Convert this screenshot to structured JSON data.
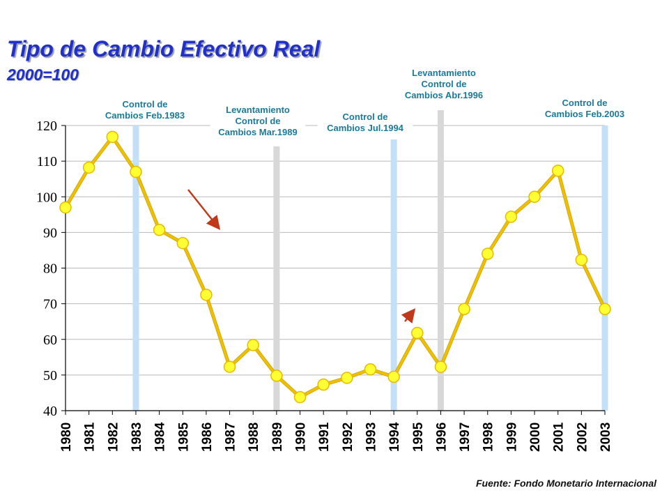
{
  "header": {
    "title": "Tipo de Cambio Efectivo Real",
    "subtitle": "2000=100"
  },
  "footer": {
    "source": "Fuente: Fondo Monetario Internacional"
  },
  "colors": {
    "title": "#2030c8",
    "line": "#f0c000",
    "marker_fill": "#ffff33",
    "marker_edge": "#e8b800",
    "control_band": "#c4e0f8",
    "lift_band": "#d8d8d8",
    "arrow": "#c0391b",
    "annotation_text": "#1a7a9a",
    "grid": "#b8b8b8"
  },
  "chart_data": {
    "type": "line",
    "x": [
      1980,
      1981,
      1982,
      1983,
      1984,
      1985,
      1986,
      1987,
      1988,
      1989,
      1990,
      1991,
      1992,
      1993,
      1994,
      1995,
      1996,
      1997,
      1998,
      1999,
      2000,
      2001,
      2002,
      2003
    ],
    "series": [
      {
        "values": [
          97,
          108.2,
          116.8,
          107,
          90.7,
          87,
          72.5,
          52.3,
          58.4,
          49.8,
          43.8,
          47.3,
          49.2,
          51.6,
          49.5,
          61.8,
          52.3,
          68.5,
          84,
          94.4,
          100,
          107.3,
          82.3,
          68.5
        ]
      }
    ],
    "ylim": [
      40,
      120
    ],
    "yticks": [
      40,
      50,
      60,
      70,
      80,
      90,
      100,
      110,
      120
    ],
    "grid": true,
    "legend": "none",
    "annotations": [
      {
        "kind": "control",
        "x": 1983,
        "lines": [
          "Control de",
          "Cambios Feb.1983"
        ]
      },
      {
        "kind": "lift",
        "x": 1989,
        "lines": [
          "Levantamiento",
          "Control de",
          "Cambios Mar.1989"
        ]
      },
      {
        "kind": "control",
        "x": 1994,
        "lines": [
          "Control de",
          "Cambios Jul.1994"
        ]
      },
      {
        "kind": "lift",
        "x": 1996,
        "lines": [
          "Levantamiento",
          "Control de",
          "Cambios Abr.1996"
        ]
      },
      {
        "kind": "control",
        "x": 2003,
        "lines": [
          "Control de",
          "Cambios Feb.2003"
        ]
      }
    ]
  }
}
